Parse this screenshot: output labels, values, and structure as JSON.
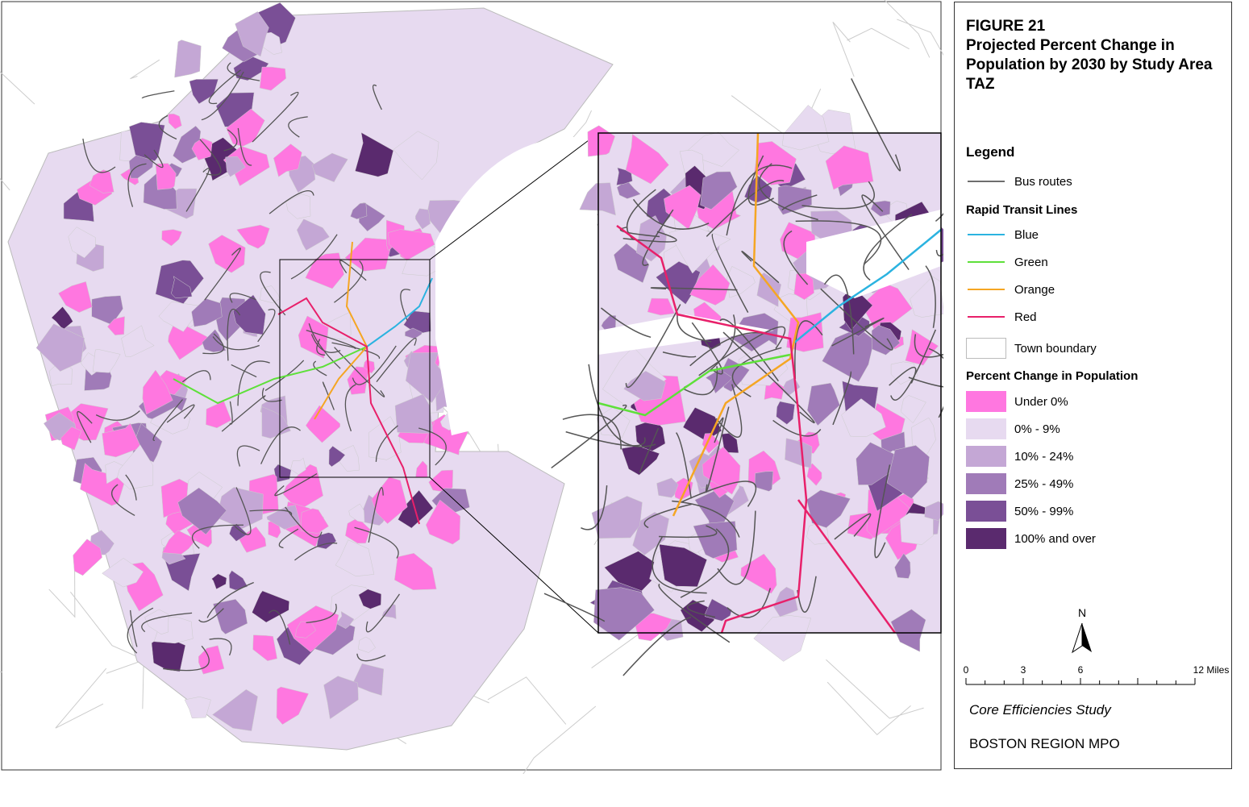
{
  "title": {
    "figure": "FIGURE 21",
    "text": "Projected Percent Change in Population by 2030 by Study Area TAZ"
  },
  "legend": {
    "heading": "Legend",
    "bus_routes": {
      "label": "Bus routes",
      "color": "#6e6e6e"
    },
    "rapid_transit": {
      "heading": "Rapid Transit Lines",
      "lines": [
        {
          "label": "Blue",
          "color": "#2bb3e0"
        },
        {
          "label": "Green",
          "color": "#5ee03a"
        },
        {
          "label": "Orange",
          "color": "#f5a623"
        },
        {
          "label": "Red",
          "color": "#e8206a"
        }
      ]
    },
    "town_boundary": {
      "label": "Town boundary"
    },
    "population": {
      "heading": "Percent Change in Population",
      "classes": [
        {
          "label": "Under 0%",
          "color": "#ff77e0"
        },
        {
          "label": "0% - 9%",
          "color": "#e7daf0"
        },
        {
          "label": "10% - 24%",
          "color": "#c4a7d5"
        },
        {
          "label": "25% - 49%",
          "color": "#a07bb8"
        },
        {
          "label": "50% - 99%",
          "color": "#7a4f96"
        },
        {
          "label": "100% and over",
          "color": "#5a2a6e"
        }
      ]
    }
  },
  "north_arrow": {
    "label": "N"
  },
  "scale_bar": {
    "labels": [
      "0",
      "3",
      "6",
      "12 Miles"
    ]
  },
  "footer": {
    "study": "Core Efficiencies Study",
    "org": "BOSTON REGION MPO"
  }
}
